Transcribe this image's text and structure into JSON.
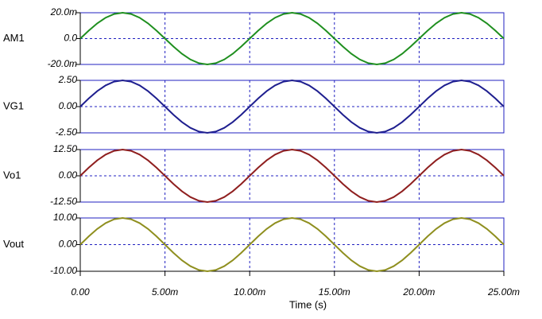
{
  "chart_data": [
    {
      "type": "line",
      "ylabel": "AM1",
      "color": "#1f8f1f",
      "x": [
        0,
        0.0005,
        0.001,
        0.0015,
        0.002,
        0.0025,
        0.003,
        0.0035,
        0.004,
        0.0045,
        0.005,
        0.0055,
        0.006,
        0.0065,
        0.007,
        0.0075,
        0.008,
        0.0085,
        0.009,
        0.0095,
        0.01,
        0.0105,
        0.011,
        0.0115,
        0.012,
        0.0125,
        0.013,
        0.0135,
        0.014,
        0.0145,
        0.015,
        0.0155,
        0.016,
        0.0165,
        0.017,
        0.0175,
        0.018,
        0.0185,
        0.019,
        0.0195,
        0.02,
        0.0205,
        0.021,
        0.0215,
        0.022,
        0.0225,
        0.023,
        0.0235,
        0.024,
        0.0245,
        0.025
      ],
      "values": [
        0,
        0.00618,
        0.01176,
        0.01618,
        0.01902,
        0.02,
        0.01902,
        0.01618,
        0.01176,
        0.00618,
        0,
        -0.00618,
        -0.01176,
        -0.01618,
        -0.01902,
        -0.02,
        -0.01902,
        -0.01618,
        -0.01176,
        -0.00618,
        0,
        0.00618,
        0.01176,
        0.01618,
        0.01902,
        0.02,
        0.01902,
        0.01618,
        0.01176,
        0.00618,
        0,
        -0.00618,
        -0.01176,
        -0.01618,
        -0.01902,
        -0.02,
        -0.01902,
        -0.01618,
        -0.01176,
        -0.00618,
        0,
        0.00618,
        0.01176,
        0.01618,
        0.01902,
        0.02,
        0.01902,
        0.01618,
        0.01176,
        0.00618,
        0
      ],
      "xlim": [
        0,
        0.025
      ],
      "xticks": [
        0,
        0.005,
        0.01,
        0.015,
        0.02,
        0.025
      ],
      "ylim": [
        -0.02,
        0.02
      ],
      "yticks": [
        {
          "value": -0.02,
          "label": "-20.0m"
        },
        {
          "value": 0,
          "label": "0.0"
        },
        {
          "value": 0.02,
          "label": "20.0m"
        }
      ]
    },
    {
      "type": "line",
      "ylabel": "VG1",
      "color": "#1f1f8f",
      "x": [
        0,
        0.0005,
        0.001,
        0.0015,
        0.002,
        0.0025,
        0.003,
        0.0035,
        0.004,
        0.0045,
        0.005,
        0.0055,
        0.006,
        0.0065,
        0.007,
        0.0075,
        0.008,
        0.0085,
        0.009,
        0.0095,
        0.01,
        0.0105,
        0.011,
        0.0115,
        0.012,
        0.0125,
        0.013,
        0.0135,
        0.014,
        0.0145,
        0.015,
        0.0155,
        0.016,
        0.0165,
        0.017,
        0.0175,
        0.018,
        0.0185,
        0.019,
        0.0195,
        0.02,
        0.0205,
        0.021,
        0.0215,
        0.022,
        0.0225,
        0.023,
        0.0235,
        0.024,
        0.0245,
        0.025
      ],
      "values": [
        0,
        0.7725,
        1.4695,
        2.0225,
        2.3778,
        2.5,
        2.3778,
        2.0225,
        1.4695,
        0.7725,
        0,
        -0.7725,
        -1.4695,
        -2.0225,
        -2.3778,
        -2.5,
        -2.3778,
        -2.0225,
        -1.4695,
        -0.7725,
        0,
        0.7725,
        1.4695,
        2.0225,
        2.3778,
        2.5,
        2.3778,
        2.0225,
        1.4695,
        0.7725,
        0,
        -0.7725,
        -1.4695,
        -2.0225,
        -2.3778,
        -2.5,
        -2.3778,
        -2.0225,
        -1.4695,
        -0.7725,
        0,
        0.7725,
        1.4695,
        2.0225,
        2.3778,
        2.5,
        2.3778,
        2.0225,
        1.4695,
        0.7725,
        0
      ],
      "xlim": [
        0,
        0.025
      ],
      "xticks": [
        0,
        0.005,
        0.01,
        0.015,
        0.02,
        0.025
      ],
      "ylim": [
        -2.5,
        2.5
      ],
      "yticks": [
        {
          "value": -2.5,
          "label": "-2.50"
        },
        {
          "value": 0,
          "label": "0.00"
        },
        {
          "value": 2.5,
          "label": "2.50"
        }
      ]
    },
    {
      "type": "line",
      "ylabel": "Vo1",
      "color": "#8f1f1f",
      "x": [
        0,
        0.0005,
        0.001,
        0.0015,
        0.002,
        0.0025,
        0.003,
        0.0035,
        0.004,
        0.0045,
        0.005,
        0.0055,
        0.006,
        0.0065,
        0.007,
        0.0075,
        0.008,
        0.0085,
        0.009,
        0.0095,
        0.01,
        0.0105,
        0.011,
        0.0115,
        0.012,
        0.0125,
        0.013,
        0.0135,
        0.014,
        0.0145,
        0.015,
        0.0155,
        0.016,
        0.0165,
        0.017,
        0.0175,
        0.018,
        0.0185,
        0.019,
        0.0195,
        0.02,
        0.0205,
        0.021,
        0.0215,
        0.022,
        0.0225,
        0.023,
        0.0235,
        0.024,
        0.0245,
        0.025
      ],
      "values": [
        0,
        3.8625,
        7.3475,
        10.1125,
        11.8888,
        12.5,
        11.8888,
        10.1125,
        7.3475,
        3.8625,
        0,
        -3.8625,
        -7.3475,
        -10.1125,
        -11.8888,
        -12.5,
        -11.8888,
        -10.1125,
        -7.3475,
        -3.8625,
        0,
        3.8625,
        7.3475,
        10.1125,
        11.8888,
        12.5,
        11.8888,
        10.1125,
        7.3475,
        3.8625,
        0,
        -3.8625,
        -7.3475,
        -10.1125,
        -11.8888,
        -12.5,
        -11.8888,
        -10.1125,
        -7.3475,
        -3.8625,
        0,
        3.8625,
        7.3475,
        10.1125,
        11.8888,
        12.5,
        11.8888,
        10.1125,
        7.3475,
        3.8625,
        0
      ],
      "xlim": [
        0,
        0.025
      ],
      "xticks": [
        0,
        0.005,
        0.01,
        0.015,
        0.02,
        0.025
      ],
      "ylim": [
        -12.5,
        12.5
      ],
      "yticks": [
        {
          "value": -12.5,
          "label": "-12.50"
        },
        {
          "value": 0,
          "label": "0.00"
        },
        {
          "value": 12.5,
          "label": "12.50"
        }
      ]
    },
    {
      "type": "line",
      "ylabel": "Vout",
      "color": "#8f8f1f",
      "xlabel": "Time (s)",
      "x": [
        0,
        0.0005,
        0.001,
        0.0015,
        0.002,
        0.0025,
        0.003,
        0.0035,
        0.004,
        0.0045,
        0.005,
        0.0055,
        0.006,
        0.0065,
        0.007,
        0.0075,
        0.008,
        0.0085,
        0.009,
        0.0095,
        0.01,
        0.0105,
        0.011,
        0.0115,
        0.012,
        0.0125,
        0.013,
        0.0135,
        0.014,
        0.0145,
        0.015,
        0.0155,
        0.016,
        0.0165,
        0.017,
        0.0175,
        0.018,
        0.0185,
        0.019,
        0.0195,
        0.02,
        0.0205,
        0.021,
        0.0215,
        0.022,
        0.0225,
        0.023,
        0.0235,
        0.024,
        0.0245,
        0.025
      ],
      "values": [
        0,
        3.09,
        5.878,
        8.09,
        9.511,
        10,
        9.511,
        8.09,
        5.878,
        3.09,
        0,
        -3.09,
        -5.878,
        -8.09,
        -9.511,
        -10,
        -9.511,
        -8.09,
        -5.878,
        -3.09,
        0,
        3.09,
        5.878,
        8.09,
        9.511,
        10,
        9.511,
        8.09,
        5.878,
        3.09,
        0,
        -3.09,
        -5.878,
        -8.09,
        -9.511,
        -10,
        -9.511,
        -8.09,
        -5.878,
        -3.09,
        0,
        3.09,
        5.878,
        8.09,
        9.511,
        10,
        9.511,
        8.09,
        5.878,
        3.09,
        0
      ],
      "xlim": [
        0,
        0.025
      ],
      "xticks": [
        {
          "value": 0,
          "label": "0.00"
        },
        {
          "value": 0.005,
          "label": "5.00m"
        },
        {
          "value": 0.01,
          "label": "10.00m"
        },
        {
          "value": 0.015,
          "label": "15.00m"
        },
        {
          "value": 0.02,
          "label": "20.00m"
        },
        {
          "value": 0.025,
          "label": "25.00m"
        }
      ],
      "ylim": [
        -10,
        10
      ],
      "yticks": [
        {
          "value": -10,
          "label": "-10.00"
        },
        {
          "value": 0,
          "label": "0.00"
        },
        {
          "value": 10,
          "label": "10.00"
        }
      ]
    }
  ]
}
